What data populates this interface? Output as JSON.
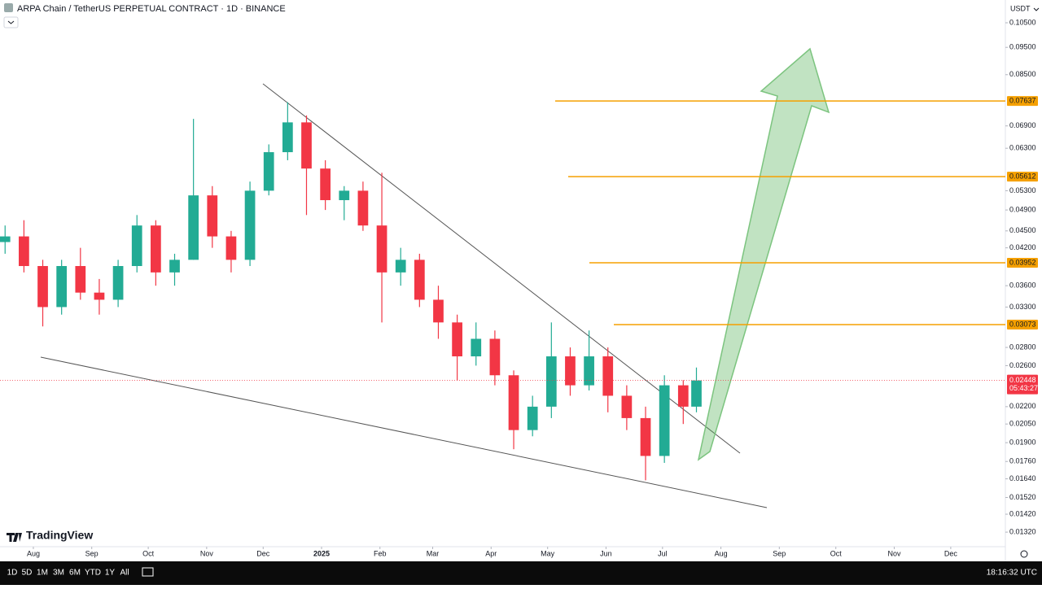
{
  "header": {
    "title": "ARPA Chain / TetherUS PERPETUAL CONTRACT · 1D · BINANCE",
    "currency": "USDT",
    "brand": "TradingView"
  },
  "footer": {
    "ranges": [
      "1D",
      "5D",
      "1M",
      "3M",
      "6M",
      "YTD",
      "1Y",
      "All"
    ],
    "clock": "18:16:32 UTC"
  },
  "chart_data": {
    "type": "candlestick",
    "log_scale": true,
    "colors": {
      "up": "#22ab94",
      "down": "#f23645",
      "level": "#f5a000"
    },
    "x": [
      -15,
      -5,
      5,
      15,
      25,
      35,
      45,
      55,
      65,
      75,
      85,
      95,
      105,
      115,
      125,
      135,
      145,
      155,
      165,
      175,
      185,
      195,
      205,
      215,
      225,
      235,
      245,
      255,
      265,
      275,
      285,
      295,
      305,
      315,
      325,
      335,
      345,
      352
    ],
    "open": [
      0.043,
      0.044,
      0.039,
      0.033,
      0.039,
      0.035,
      0.034,
      0.039,
      0.046,
      0.038,
      0.04,
      0.052,
      0.044,
      0.04,
      0.053,
      0.062,
      0.07,
      0.058,
      0.051,
      0.053,
      0.046,
      0.038,
      0.04,
      0.034,
      0.031,
      0.027,
      0.029,
      0.025,
      0.02,
      0.022,
      0.027,
      0.024,
      0.027,
      0.023,
      0.021,
      0.018,
      0.024,
      0.022
    ],
    "high": [
      0.046,
      0.047,
      0.04,
      0.04,
      0.042,
      0.037,
      0.04,
      0.048,
      0.047,
      0.041,
      0.071,
      0.054,
      0.045,
      0.055,
      0.064,
      0.076,
      0.072,
      0.06,
      0.054,
      0.055,
      0.057,
      0.042,
      0.041,
      0.036,
      0.032,
      0.031,
      0.03,
      0.0255,
      0.023,
      0.031,
      0.028,
      0.03,
      0.028,
      0.024,
      0.022,
      0.025,
      0.0245,
      0.0258
    ],
    "low": [
      0.041,
      0.038,
      0.0305,
      0.032,
      0.034,
      0.032,
      0.033,
      0.038,
      0.036,
      0.036,
      0.04,
      0.042,
      0.038,
      0.039,
      0.052,
      0.06,
      0.048,
      0.049,
      0.047,
      0.045,
      0.031,
      0.036,
      0.033,
      0.029,
      0.0245,
      0.026,
      0.024,
      0.0185,
      0.0195,
      0.021,
      0.023,
      0.0235,
      0.0215,
      0.02,
      0.0163,
      0.0175,
      0.0205,
      0.0215
    ],
    "close": [
      0.044,
      0.039,
      0.033,
      0.039,
      0.035,
      0.034,
      0.039,
      0.046,
      0.038,
      0.04,
      0.052,
      0.044,
      0.04,
      0.053,
      0.062,
      0.07,
      0.058,
      0.051,
      0.053,
      0.046,
      0.038,
      0.04,
      0.034,
      0.031,
      0.027,
      0.029,
      0.025,
      0.02,
      0.022,
      0.027,
      0.024,
      0.027,
      0.023,
      0.021,
      0.018,
      0.024,
      0.022,
      0.02448
    ],
    "last_price": 0.02448,
    "countdown": "05:43:27",
    "levels": [
      0.07637,
      0.05612,
      0.03952,
      0.03073
    ],
    "xlim": [
      -17.7,
      516
    ],
    "xticks": [
      {
        "value": 0,
        "label": "Aug"
      },
      {
        "value": 31,
        "label": "Sep"
      },
      {
        "value": 61,
        "label": "Oct"
      },
      {
        "value": 92,
        "label": "Nov"
      },
      {
        "value": 122,
        "label": "Dec"
      },
      {
        "value": 153,
        "label": "2025"
      },
      {
        "value": 184,
        "label": "Feb"
      },
      {
        "value": 212,
        "label": "Mar"
      },
      {
        "value": 243,
        "label": "Apr"
      },
      {
        "value": 273,
        "label": "May"
      },
      {
        "value": 304,
        "label": "Jun"
      },
      {
        "value": 334,
        "label": "Jul"
      },
      {
        "value": 365,
        "label": "Aug"
      },
      {
        "value": 396,
        "label": "Sep"
      },
      {
        "value": 426,
        "label": "Oct"
      },
      {
        "value": 457,
        "label": "Nov"
      },
      {
        "value": 487,
        "label": "Dec"
      }
    ],
    "ylim": [
      0.01244,
      0.1152
    ],
    "yticks": [
      {
        "value": 0.105,
        "label": "0.10500"
      },
      {
        "value": 0.095,
        "label": "0.09500"
      },
      {
        "value": 0.085,
        "label": "0.08500"
      },
      {
        "value": 0.069,
        "label": "0.06900"
      },
      {
        "value": 0.063,
        "label": "0.06300"
      },
      {
        "value": 0.053,
        "label": "0.05300"
      },
      {
        "value": 0.049,
        "label": "0.04900"
      },
      {
        "value": 0.045,
        "label": "0.04500"
      },
      {
        "value": 0.042,
        "label": "0.04200"
      },
      {
        "value": 0.036,
        "label": "0.03600"
      },
      {
        "value": 0.033,
        "label": "0.03300"
      },
      {
        "value": 0.028,
        "label": "0.02800"
      },
      {
        "value": 0.026,
        "label": "0.02600"
      },
      {
        "value": 0.022,
        "label": "0.02200"
      },
      {
        "value": 0.0205,
        "label": "0.02050"
      },
      {
        "value": 0.019,
        "label": "0.01900"
      },
      {
        "value": 0.0176,
        "label": "0.01760"
      },
      {
        "value": 0.0164,
        "label": "0.01640"
      },
      {
        "value": 0.0152,
        "label": "0.01520"
      },
      {
        "value": 0.0142,
        "label": "0.01420"
      },
      {
        "value": 0.0132,
        "label": "0.01320"
      }
    ]
  }
}
